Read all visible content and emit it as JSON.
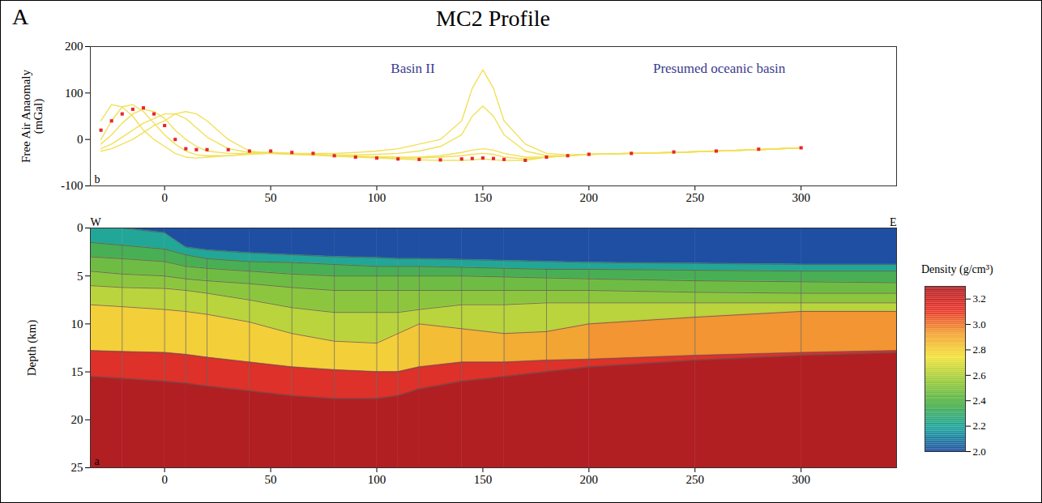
{
  "panel_label": "A",
  "title": "MC2 Profile",
  "chart_data": [
    {
      "type": "line",
      "panel_label": "b",
      "y_label": "Free Air Anaomaly (mGal)",
      "annotations": [
        "Basin II",
        "Presumed oceanic basin"
      ],
      "xlim": [
        -35,
        345
      ],
      "xticks": [
        0,
        50,
        100,
        150,
        200,
        250,
        300
      ],
      "ylim": [
        -100,
        200
      ],
      "yticks": [
        -100,
        0,
        100,
        200
      ],
      "x": [
        -30,
        -25,
        -20,
        -15,
        -10,
        -5,
        0,
        5,
        10,
        15,
        20,
        30,
        40,
        50,
        60,
        70,
        80,
        90,
        100,
        110,
        120,
        130,
        140,
        145,
        150,
        155,
        160,
        170,
        180,
        190,
        200,
        220,
        240,
        260,
        280,
        300
      ],
      "series": [
        {
          "type": "line",
          "color": "#f2e05a",
          "values": [
            40,
            75,
            70,
            50,
            20,
            0,
            -15,
            -30,
            -38,
            -40,
            -38,
            -35,
            -30,
            -28,
            -30,
            -30,
            -30,
            -28,
            -25,
            -20,
            -10,
            0,
            40,
            110,
            150,
            110,
            40,
            -10,
            -30,
            -33,
            -32,
            -30,
            -28,
            -25,
            -22,
            -18
          ]
        },
        {
          "type": "line",
          "color": "#f2e05a",
          "values": [
            0,
            40,
            70,
            75,
            60,
            35,
            10,
            -10,
            -25,
            -33,
            -35,
            -35,
            -32,
            -30,
            -32,
            -33,
            -33,
            -33,
            -32,
            -30,
            -25,
            -15,
            10,
            50,
            72,
            50,
            10,
            -25,
            -35,
            -35,
            -32,
            -30,
            -28,
            -25,
            -22,
            -18
          ]
        },
        {
          "type": "line",
          "color": "#f2e05a",
          "values": [
            -10,
            10,
            35,
            55,
            65,
            60,
            45,
            20,
            0,
            -15,
            -25,
            -30,
            -30,
            -28,
            -30,
            -32,
            -35,
            -36,
            -37,
            -38,
            -38,
            -35,
            -28,
            -23,
            -20,
            -23,
            -30,
            -38,
            -38,
            -35,
            -32,
            -30,
            -28,
            -25,
            -22,
            -18
          ]
        },
        {
          "type": "line",
          "color": "#f2e05a",
          "values": [
            -20,
            -10,
            5,
            20,
            35,
            45,
            55,
            55,
            45,
            25,
            5,
            -20,
            -28,
            -28,
            -30,
            -32,
            -35,
            -37,
            -39,
            -40,
            -40,
            -38,
            -35,
            -32,
            -30,
            -32,
            -38,
            -42,
            -38,
            -35,
            -32,
            -30,
            -28,
            -25,
            -22,
            -18
          ]
        },
        {
          "type": "line",
          "color": "#f2e05a",
          "values": [
            -25,
            -20,
            -10,
            0,
            15,
            30,
            40,
            55,
            60,
            55,
            40,
            0,
            -25,
            -30,
            -32,
            -34,
            -36,
            -38,
            -40,
            -42,
            -44,
            -45,
            -45,
            -44,
            -42,
            -44,
            -45,
            -45,
            -38,
            -35,
            -32,
            -30,
            -28,
            -25,
            -22,
            -18
          ]
        },
        {
          "type": "scatter",
          "marker": "square",
          "color": "#e8262a",
          "values": [
            20,
            40,
            55,
            65,
            68,
            55,
            30,
            0,
            -20,
            -22,
            -22,
            -22,
            -25,
            -25,
            -28,
            -30,
            -35,
            -38,
            -40,
            -42,
            -43,
            -44,
            -42,
            -41,
            -40,
            -41,
            -43,
            -45,
            -38,
            -35,
            -32,
            -30,
            -27,
            -25,
            -21,
            -18
          ]
        }
      ]
    },
    {
      "type": "density_model",
      "panel_label": "a",
      "y_label": "Depth (km)",
      "left_label": "W",
      "right_label": "E",
      "xlim": [
        -35,
        345
      ],
      "xticks": [
        0,
        50,
        100,
        150,
        200,
        250,
        300
      ],
      "ylim": [
        0,
        25
      ],
      "yticks": [
        0,
        5,
        10,
        15,
        20,
        25
      ],
      "x": [
        -35,
        -20,
        0,
        10,
        20,
        40,
        60,
        80,
        100,
        110,
        120,
        140,
        160,
        180,
        200,
        250,
        300,
        345
      ],
      "boundaries": [
        [
          0,
          0,
          0,
          0,
          0,
          0,
          0,
          0,
          0,
          0,
          0,
          0,
          0,
          0,
          0,
          0,
          0,
          0
        ],
        [
          0,
          0,
          0.5,
          2,
          2.3,
          2.6,
          2.8,
          3.0,
          3.1,
          3.2,
          3.2,
          3.3,
          3.4,
          3.5,
          3.6,
          3.7,
          3.8,
          3.8
        ],
        [
          1.5,
          1.8,
          2.2,
          2.8,
          3.2,
          3.5,
          3.6,
          3.8,
          4.0,
          4.0,
          4.0,
          4.1,
          4.2,
          4.3,
          4.3,
          4.4,
          4.5,
          4.5
        ],
        [
          3.0,
          3.2,
          3.5,
          4.0,
          4.2,
          4.5,
          4.8,
          5.0,
          5.0,
          5.0,
          5.0,
          5.0,
          5.1,
          5.2,
          5.3,
          5.5,
          5.6,
          5.7
        ],
        [
          4.5,
          4.8,
          5.0,
          5.3,
          5.5,
          5.8,
          6.2,
          6.5,
          6.5,
          6.5,
          6.5,
          6.5,
          6.5,
          6.5,
          6.5,
          6.7,
          6.8,
          6.8
        ],
        [
          6.0,
          6.2,
          6.3,
          6.5,
          6.8,
          7.5,
          8.3,
          8.8,
          8.8,
          8.8,
          8.5,
          8.0,
          8.0,
          7.8,
          7.8,
          7.8,
          7.8,
          7.8
        ],
        [
          8.0,
          8.2,
          8.5,
          8.7,
          9.0,
          9.8,
          11.0,
          11.8,
          12.0,
          11.0,
          10.0,
          10.5,
          11.0,
          10.8,
          10.0,
          9.3,
          8.7,
          8.7
        ],
        [
          12.8,
          12.9,
          13.0,
          13.2,
          13.5,
          14.0,
          14.5,
          14.8,
          15.0,
          15.0,
          14.5,
          14.0,
          14.0,
          13.8,
          13.7,
          13.3,
          13.0,
          12.8
        ],
        [
          15.5,
          15.7,
          16.0,
          16.2,
          16.5,
          17.0,
          17.5,
          17.8,
          17.8,
          17.5,
          16.8,
          16.0,
          15.5,
          15.0,
          14.5,
          13.8,
          13.3,
          13.0
        ],
        [
          25,
          25,
          25,
          25,
          25,
          25,
          25,
          25,
          25,
          25,
          25,
          25,
          25,
          25,
          25,
          25,
          25,
          25
        ]
      ],
      "densities": [
        2.0,
        2.2,
        2.35,
        2.45,
        2.52,
        2.62,
        [
          2.8,
          2.8,
          2.8,
          2.8,
          2.8,
          2.8,
          2.8,
          2.8,
          2.8,
          2.82,
          2.85,
          2.88,
          2.9,
          2.92,
          2.95,
          2.95,
          2.95
        ],
        3.15,
        3.3
      ],
      "legend": "right",
      "colorbar": {
        "title": "Density (g/cm³)",
        "range": [
          2.0,
          3.3
        ],
        "ticks": [
          {
            "value": 2,
            "label": "2.0"
          },
          2.2,
          2.4,
          2.6,
          2.8,
          {
            "value": 3,
            "label": "3.0"
          },
          3.2
        ],
        "colors": [
          "#1f4fa3",
          "#1ea59d",
          "#4db04a",
          "#9ccc3c",
          "#f3e33b",
          "#f3a233",
          "#e8352b",
          "#b11f23"
        ]
      }
    }
  ]
}
